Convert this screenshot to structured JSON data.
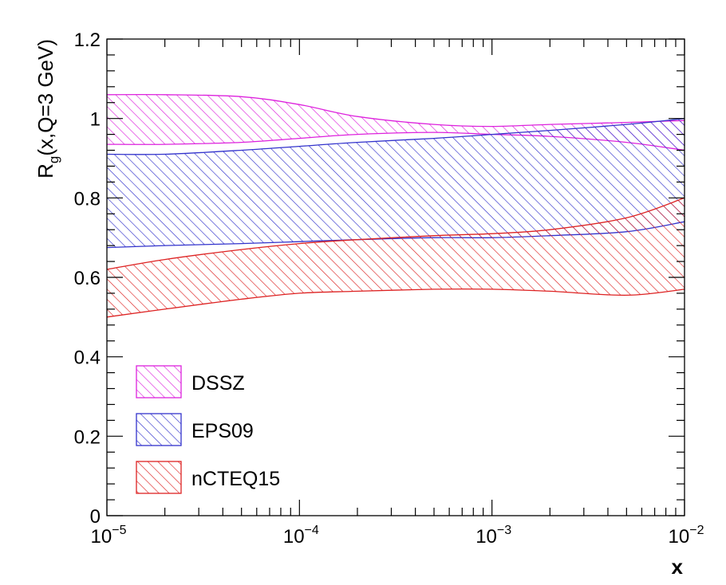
{
  "chart_data": {
    "type": "area",
    "title": "",
    "xlabel": "x",
    "ylabel_main": "R",
    "ylabel_sub": "g",
    "ylabel_rest": "(x,Q=3 GeV)",
    "xscale": "log",
    "xlim": [
      1e-05,
      0.01
    ],
    "ylim": [
      0,
      1.2
    ],
    "x_ticks": [
      {
        "base": "10",
        "exp": "−5",
        "value": 1e-05
      },
      {
        "base": "10",
        "exp": "−4",
        "value": 0.0001
      },
      {
        "base": "10",
        "exp": "−3",
        "value": 0.001
      },
      {
        "base": "10",
        "exp": "−2",
        "value": 0.01
      }
    ],
    "y_ticks": [
      {
        "label": "0",
        "value": 0
      },
      {
        "label": "0.2",
        "value": 0.2
      },
      {
        "label": "0.4",
        "value": 0.4
      },
      {
        "label": "0.6",
        "value": 0.6
      },
      {
        "label": "0.8",
        "value": 0.8
      },
      {
        "label": "1",
        "value": 1.0
      },
      {
        "label": "1.2",
        "value": 1.2
      }
    ],
    "grid": false,
    "legend_position": "bottom-left",
    "series": [
      {
        "name": "DSSZ",
        "color": "#dd22dd",
        "x": [
          1e-05,
          2e-05,
          5e-05,
          0.0001,
          0.0002,
          0.0005,
          0.001,
          0.002,
          0.005,
          0.01
        ],
        "upper": [
          1.06,
          1.06,
          1.055,
          1.035,
          1.005,
          0.985,
          0.98,
          0.985,
          0.99,
          0.995
        ],
        "lower": [
          0.935,
          0.935,
          0.94,
          0.95,
          0.96,
          0.965,
          0.96,
          0.955,
          0.94,
          0.92
        ]
      },
      {
        "name": "EPS09",
        "color": "#3333cc",
        "x": [
          1e-05,
          2e-05,
          5e-05,
          0.0001,
          0.0002,
          0.0005,
          0.001,
          0.002,
          0.005,
          0.01
        ],
        "upper": [
          0.91,
          0.91,
          0.92,
          0.93,
          0.94,
          0.95,
          0.96,
          0.97,
          0.985,
          1.0
        ],
        "lower": [
          0.675,
          0.68,
          0.685,
          0.69,
          0.695,
          0.7,
          0.7,
          0.705,
          0.715,
          0.74
        ]
      },
      {
        "name": "nCTEQ15",
        "color": "#dd2222",
        "x": [
          1e-05,
          2e-05,
          5e-05,
          0.0001,
          0.0002,
          0.0005,
          0.001,
          0.002,
          0.005,
          0.01
        ],
        "upper": [
          0.62,
          0.645,
          0.67,
          0.685,
          0.695,
          0.705,
          0.71,
          0.72,
          0.75,
          0.8
        ],
        "lower": [
          0.5,
          0.52,
          0.545,
          0.56,
          0.565,
          0.57,
          0.57,
          0.565,
          0.555,
          0.57
        ]
      }
    ]
  }
}
